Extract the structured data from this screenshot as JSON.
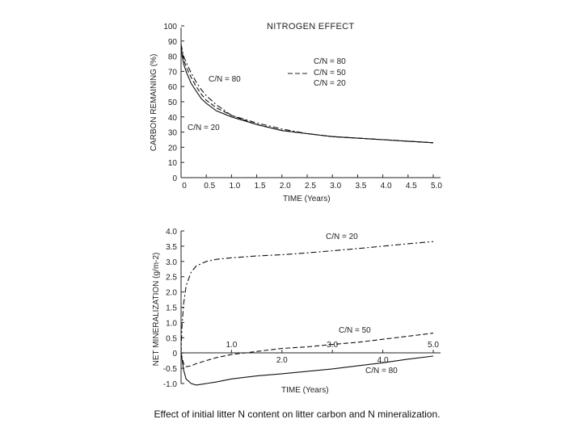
{
  "chart_data": [
    {
      "type": "line",
      "title": "NITROGEN EFFECT",
      "xlabel": "TIME (Years)",
      "ylabel": "CARBON REMAINING (%)",
      "xlim": [
        0,
        5
      ],
      "ylim": [
        0,
        100
      ],
      "x_ticks": [
        "0",
        "0.5",
        "1.0",
        "1.5",
        "2.0",
        "2.5",
        "3.0",
        "3.5",
        "4.0",
        "4.5",
        "5.0"
      ],
      "y_ticks": [
        "0",
        "10",
        "20",
        "30",
        "40",
        "50",
        "60",
        "70",
        "80",
        "90",
        "100"
      ],
      "legend": [
        "C/N = 80",
        "C/N = 50",
        "C/N = 20"
      ],
      "annotations": [
        "C/N = 80",
        "C/N = 20"
      ],
      "series": [
        {
          "name": "C/N = 80",
          "style": "solid",
          "x": [
            0,
            0.05,
            0.1,
            0.2,
            0.3,
            0.4,
            0.5,
            0.7,
            1.0,
            1.5,
            2.0,
            2.5,
            3.0,
            3.5,
            4.0,
            4.5,
            5.0
          ],
          "y": [
            85,
            75,
            70,
            62,
            57,
            52,
            49,
            44,
            40,
            35,
            31,
            29,
            27,
            26,
            25,
            24,
            23
          ]
        },
        {
          "name": "C/N = 50",
          "style": "dashed",
          "x": [
            0,
            0.05,
            0.1,
            0.2,
            0.3,
            0.4,
            0.5,
            0.7,
            1.0,
            1.5,
            2.0,
            2.5,
            3.0,
            3.5,
            4.0,
            4.5,
            5.0
          ],
          "y": [
            86,
            78,
            73,
            66,
            60,
            55,
            51,
            46,
            41,
            35,
            31,
            29,
            27,
            26,
            25,
            24,
            23
          ]
        },
        {
          "name": "C/N = 20",
          "style": "dashdot",
          "x": [
            0,
            0.05,
            0.1,
            0.2,
            0.3,
            0.4,
            0.5,
            0.7,
            1.0,
            1.5,
            2.0,
            2.5,
            3.0,
            3.5,
            4.0,
            4.5,
            5.0
          ],
          "y": [
            88,
            80,
            76,
            69,
            63,
            58,
            54,
            48,
            41,
            36,
            32,
            29,
            27,
            26,
            25,
            24,
            23
          ]
        }
      ]
    },
    {
      "type": "line",
      "title": "",
      "xlabel": "TIME (Years)",
      "ylabel": "NET MINERALIZATION (g/m-2)",
      "xlim": [
        0,
        5
      ],
      "ylim": [
        -1.0,
        4.0
      ],
      "x_ticks": [
        "1.0",
        "2.0",
        "3.0",
        "4.0",
        "5.0"
      ],
      "y_ticks": [
        "-1.0",
        "-0.5",
        "0",
        "0.5",
        "1.0",
        "1.5",
        "2.0",
        "2.5",
        "3.0",
        "3.5",
        "4.0"
      ],
      "annotations": [
        "C/N = 20",
        "C/N = 50",
        "C/N = 80"
      ],
      "series": [
        {
          "name": "C/N = 20",
          "style": "dashdot",
          "x": [
            0,
            0.02,
            0.05,
            0.1,
            0.2,
            0.3,
            0.5,
            0.7,
            1.0,
            1.5,
            2.0,
            2.5,
            3.0,
            3.5,
            4.0,
            4.5,
            5.0
          ],
          "y": [
            0,
            0.9,
            1.6,
            2.2,
            2.65,
            2.85,
            3.0,
            3.07,
            3.12,
            3.18,
            3.22,
            3.28,
            3.35,
            3.42,
            3.5,
            3.58,
            3.65
          ]
        },
        {
          "name": "C/N = 50",
          "style": "dashed",
          "x": [
            0,
            0.05,
            0.1,
            0.2,
            0.3,
            0.5,
            0.7,
            1.0,
            1.5,
            2.0,
            2.5,
            3.0,
            3.5,
            4.0,
            4.5,
            5.0
          ],
          "y": [
            0,
            -0.35,
            -0.45,
            -0.42,
            -0.35,
            -0.25,
            -0.15,
            -0.05,
            0.05,
            0.15,
            0.2,
            0.28,
            0.35,
            0.45,
            0.55,
            0.65
          ]
        },
        {
          "name": "C/N = 80",
          "style": "solid",
          "x": [
            0,
            0.05,
            0.1,
            0.2,
            0.3,
            0.5,
            0.7,
            1.0,
            1.5,
            2.0,
            2.5,
            3.0,
            3.5,
            4.0,
            4.5,
            5.0
          ],
          "y": [
            0,
            -0.55,
            -0.85,
            -1.0,
            -1.05,
            -1.0,
            -0.95,
            -0.85,
            -0.75,
            -0.68,
            -0.6,
            -0.52,
            -0.42,
            -0.32,
            -0.2,
            -0.1
          ]
        }
      ]
    }
  ],
  "caption": "Effect of initial litter N content on litter carbon and N mineralization."
}
